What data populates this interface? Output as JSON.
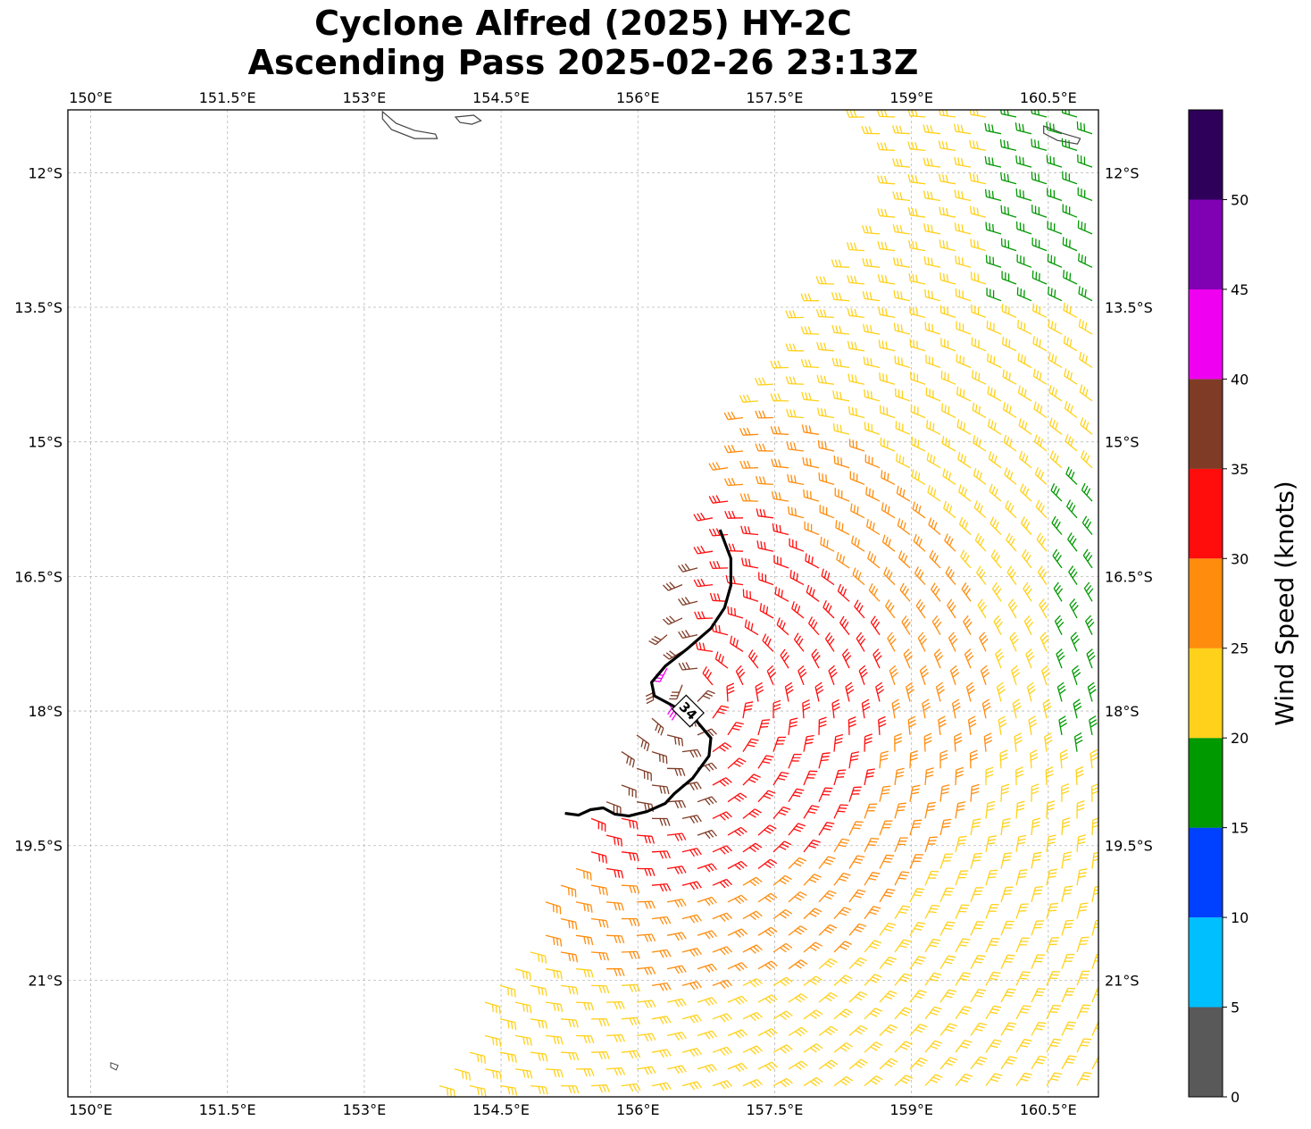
{
  "title": {
    "line1": "Cyclone Alfred (2025) HY-2C",
    "line2": "Ascending Pass 2025-02-26 23:13Z"
  },
  "chart_data": {
    "type": "wind_barb_map",
    "title": "Cyclone Alfred (2025) HY-2C Ascending Pass 2025-02-26 23:13Z",
    "lon_range": [
      149.75,
      161.05
    ],
    "lat_range": [
      -22.3,
      -11.3
    ],
    "x_ticks": [
      {
        "value": 150,
        "label": "150°E"
      },
      {
        "value": 151.5,
        "label": "151.5°E"
      },
      {
        "value": 153,
        "label": "153°E"
      },
      {
        "value": 154.5,
        "label": "154.5°E"
      },
      {
        "value": 156,
        "label": "156°E"
      },
      {
        "value": 157.5,
        "label": "157.5°E"
      },
      {
        "value": 159,
        "label": "159°E"
      },
      {
        "value": 160.5,
        "label": "160.5°E"
      }
    ],
    "y_ticks": [
      {
        "value": -12,
        "label": "12°S"
      },
      {
        "value": -13.5,
        "label": "13.5°S"
      },
      {
        "value": -15,
        "label": "15°S"
      },
      {
        "value": -16.5,
        "label": "16.5°S"
      },
      {
        "value": -18,
        "label": "18°S"
      },
      {
        "value": -19.5,
        "label": "19.5°S"
      },
      {
        "value": -21,
        "label": "21°S"
      }
    ],
    "grid": true,
    "colorbar": {
      "label": "Wind Speed (knots)",
      "bins": [
        {
          "min": 0,
          "max": 5,
          "color": "#595959"
        },
        {
          "min": 5,
          "max": 10,
          "color": "#00bfff"
        },
        {
          "min": 10,
          "max": 15,
          "color": "#0040ff"
        },
        {
          "min": 15,
          "max": 20,
          "color": "#009900"
        },
        {
          "min": 20,
          "max": 25,
          "color": "#ffd11a"
        },
        {
          "min": 25,
          "max": 30,
          "color": "#ff8c0d"
        },
        {
          "min": 30,
          "max": 35,
          "color": "#ff0d0d"
        },
        {
          "min": 35,
          "max": 40,
          "color": "#7f3b26"
        },
        {
          "min": 40,
          "max": 45,
          "color": "#f000f0"
        },
        {
          "min": 45,
          "max": 50,
          "color": "#8000b3"
        },
        {
          "min": 50,
          "max": 55,
          "color": "#2e0059"
        }
      ],
      "tick_values": [
        0,
        5,
        10,
        15,
        20,
        25,
        30,
        35,
        40,
        45,
        50
      ],
      "tick_labels": [
        "0",
        "5",
        "10",
        "15",
        "20",
        "25",
        "30",
        "35",
        "40",
        "45",
        "50"
      ]
    },
    "contour": {
      "label": "34",
      "points": [
        [
          156.9,
          -15.98
        ],
        [
          157.02,
          -16.3
        ],
        [
          157.02,
          -16.6
        ],
        [
          156.95,
          -16.85
        ],
        [
          156.8,
          -17.08
        ],
        [
          156.55,
          -17.3
        ],
        [
          156.3,
          -17.5
        ],
        [
          156.15,
          -17.68
        ],
        [
          156.18,
          -17.83
        ],
        [
          156.4,
          -17.95
        ],
        [
          156.65,
          -18.12
        ],
        [
          156.8,
          -18.3
        ],
        [
          156.78,
          -18.5
        ],
        [
          156.6,
          -18.75
        ],
        [
          156.4,
          -18.92
        ],
        [
          156.3,
          -19.03
        ],
        [
          156.1,
          -19.12
        ],
        [
          155.9,
          -19.17
        ],
        [
          155.75,
          -19.15
        ],
        [
          155.62,
          -19.08
        ],
        [
          155.48,
          -19.1
        ],
        [
          155.35,
          -19.16
        ],
        [
          155.2,
          -19.14
        ]
      ]
    },
    "swath_region": [
      [
        158.15,
        -11.35
      ],
      [
        161.05,
        -11.35
      ],
      [
        161.05,
        -22.3
      ],
      [
        153.55,
        -22.3
      ],
      [
        154.1,
        -21.6
      ],
      [
        155.0,
        -20.0
      ],
      [
        155.5,
        -19.1
      ],
      [
        156.0,
        -18.0
      ],
      [
        156.2,
        -17.4
      ],
      [
        156.35,
        -16.9
      ],
      [
        156.6,
        -16.2
      ],
      [
        157.0,
        -15.0
      ],
      [
        157.5,
        -14.1
      ],
      [
        158.1,
        -13.0
      ],
      [
        158.9,
        -12.0
      ]
    ],
    "wind_field": {
      "center": [
        156.6,
        -17.8
      ],
      "regions": [
        {
          "color": "#009900",
          "desc": "15-20 kt NE corner and east edge"
        },
        {
          "color": "#ffd11a",
          "desc": "20-25 kt outer east and southeast"
        },
        {
          "color": "#ff8c0d",
          "desc": "25-30 kt middle band"
        },
        {
          "color": "#ff0d0d",
          "desc": "30-35 kt inner band"
        },
        {
          "color": "#7f3b26",
          "desc": "35-40 kt near the western swath edge"
        },
        {
          "color": "#f000f0",
          "desc": "40-45 kt small patches"
        },
        {
          "color": "#8000b3",
          "desc": "45-50 kt"
        }
      ]
    },
    "land_outlines": [
      "coast outline top center",
      "coast outline top right",
      "islets near the left edge"
    ]
  }
}
